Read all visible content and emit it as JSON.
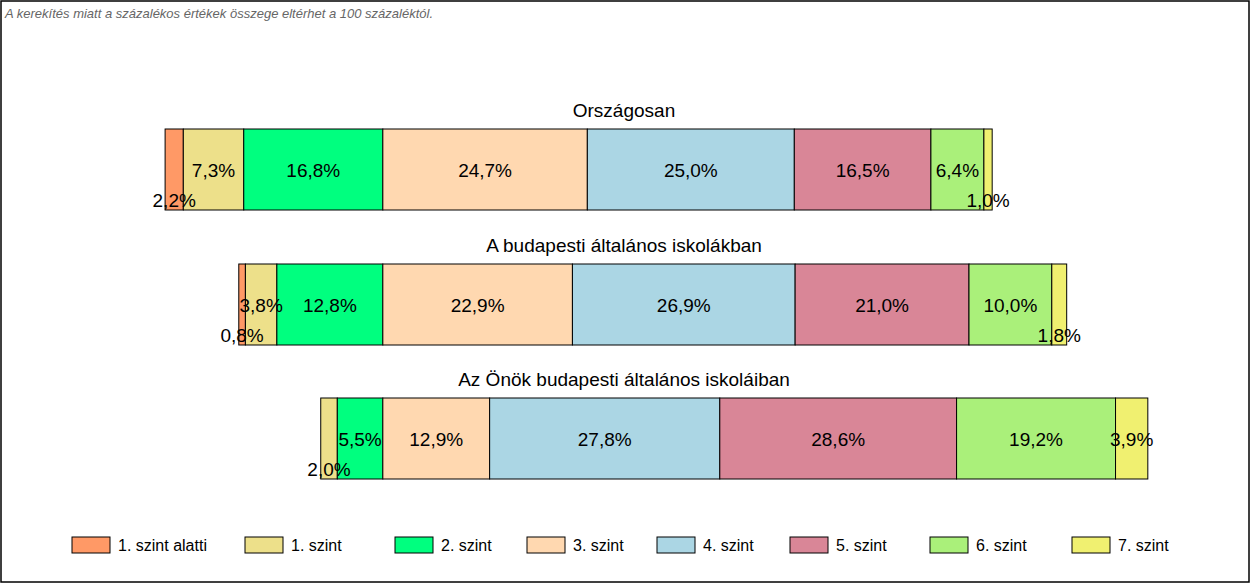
{
  "chart_data": {
    "type": "bar",
    "orientation": "horizontal",
    "stacked": true,
    "data_labels": true,
    "tick_labels": false,
    "legend": "bottom",
    "annotations": [
      "A kerekítés miatt a  százalékos értékek összege eltérhet a 100 százaléktól."
    ],
    "categories": [
      "Országosan",
      "A budapesti általános iskolákban",
      "Az Önök budapesti általános iskoláiban"
    ],
    "xlim": [
      -46,
      104.5
    ],
    "series": [
      {
        "name": "1. szint alatti",
        "color": "#ff9966",
        "values": [
          2.2,
          0.8,
          null
        ],
        "value_labels": [
          "2,2%",
          "0,8%",
          null
        ]
      },
      {
        "name": "1. szint",
        "color": "#ede08a",
        "values": [
          7.3,
          3.8,
          2.0
        ],
        "value_labels": [
          "7,3%",
          "3,8%",
          "2,0%"
        ]
      },
      {
        "name": "2. szint",
        "color": "#00ff7f",
        "values": [
          16.8,
          12.8,
          5.5
        ],
        "value_labels": [
          "16,8%",
          "12,8%",
          "5,5%"
        ]
      },
      {
        "name": "3. szint",
        "color": "#ffd8b0",
        "values": [
          24.7,
          22.9,
          12.9
        ],
        "value_labels": [
          "24,7%",
          "22,9%",
          "12,9%"
        ]
      },
      {
        "name": "4. szint",
        "color": "#abd6e4",
        "values": [
          25.0,
          26.9,
          27.8
        ],
        "value_labels": [
          "25,0%",
          "26,9%",
          "27,8%"
        ]
      },
      {
        "name": "5. szint",
        "color": "#d98697",
        "values": [
          16.5,
          21.0,
          28.6
        ],
        "value_labels": [
          "16,5%",
          "21,0%",
          "28,6%"
        ]
      },
      {
        "name": "6. szint",
        "color": "#aaf07a",
        "values": [
          6.4,
          10.0,
          19.2
        ],
        "value_labels": [
          "6,4%",
          "10,0%",
          "19,2%"
        ]
      },
      {
        "name": "7. szint",
        "color": "#f0f070",
        "values": [
          1.0,
          1.8,
          3.9
        ],
        "value_labels": [
          "1,0%",
          "1,8%",
          "3,9%"
        ]
      }
    ]
  }
}
